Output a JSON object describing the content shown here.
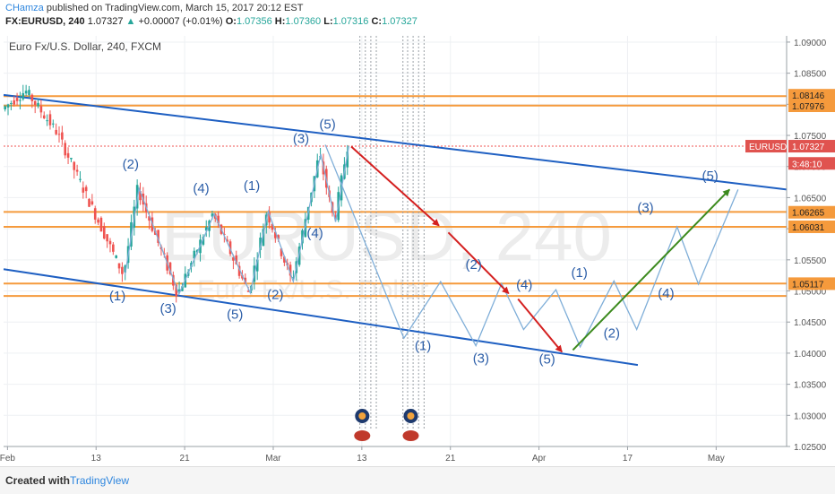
{
  "header": {
    "author": "CHamza",
    "published": " published on TradingView.com, March 15, 2017 20:12 EST",
    "symbol": "FX:EURUSD, 240",
    "last": "1.07327",
    "change": "+0.00007 (+0.01%)",
    "open_label": "O:",
    "open": "1.07356",
    "high_label": "H:",
    "high": "1.07360",
    "low_label": "L:",
    "low": "1.07316",
    "close_label": "C:",
    "close": "1.07327"
  },
  "footer": {
    "label": "Created with",
    "brand": "TradingView"
  },
  "colors": {
    "up_candle": "#26a69a",
    "down_candle": "#ef5350",
    "channel": "#1e5fc2",
    "horizontal_levels": "#f59a3c",
    "projection": "#7faed8",
    "red_arrow": "#d42020",
    "green_arrow": "#3c8a1e",
    "wave_label": "#2c5ea8",
    "price_badge": "#e0534f"
  },
  "chart_data": {
    "type": "candlestick",
    "title": "Euro Fx/U.S. Dollar, 240, FXCM",
    "watermark": "EURUSD, 240",
    "watermark_sub": "Euro Fx/U.S. Dollar",
    "x_ticks": [
      "Feb",
      "13",
      "21",
      "Mar",
      "13",
      "21",
      "Apr",
      "17",
      "May"
    ],
    "y_ticks": [
      "1.09000",
      "1.08500",
      "1.08000",
      "1.07500",
      "1.07000",
      "1.06500",
      "1.06000",
      "1.05500",
      "1.05000",
      "1.04500",
      "1.04000",
      "1.03500",
      "1.03000",
      "1.02500"
    ],
    "ylim": [
      1.025,
      1.091
    ],
    "price_axis_labels": [
      {
        "value": 1.08146,
        "text": "1.08146",
        "style": "level"
      },
      {
        "value": 1.07976,
        "text": "1.07976",
        "style": "level"
      },
      {
        "value": 1.07327,
        "text": "1.07327",
        "style": "current",
        "name": "EURUSD"
      },
      {
        "value": 1.0705,
        "text": "3:48:10",
        "style": "timer"
      },
      {
        "value": 1.06265,
        "text": "1.06265",
        "style": "level"
      },
      {
        "value": 1.06031,
        "text": "1.06031",
        "style": "level"
      },
      {
        "value": 1.05117,
        "text": "1.05117",
        "style": "level"
      }
    ],
    "horizontal_levels": [
      1.0813,
      1.0798,
      1.0627,
      1.0603,
      1.0512,
      1.0492
    ],
    "current_price": 1.07327,
    "channel_lines": [
      {
        "from": [
          0.0,
          1.0815
        ],
        "to": [
          1.0,
          1.0663
        ]
      },
      {
        "from": [
          0.0,
          1.0535
        ],
        "to": [
          0.81,
          1.0381
        ]
      }
    ],
    "projection_path": [
      [
        0.438,
        1.0735
      ],
      [
        0.545,
        1.0424
      ],
      [
        0.595,
        1.0515
      ],
      [
        0.643,
        1.0412
      ],
      [
        0.678,
        1.0512
      ],
      [
        0.708,
        1.0438
      ],
      [
        0.752,
        1.0502
      ],
      [
        0.785,
        1.041
      ],
      [
        0.831,
        1.0516
      ],
      [
        0.862,
        1.0438
      ],
      [
        0.917,
        1.0603
      ],
      [
        0.946,
        1.0511
      ],
      [
        1.0,
        1.0663
      ]
    ],
    "wave_labels": [
      {
        "text": "(1)",
        "x": 0.155,
        "y": 1.0485
      },
      {
        "text": "(2)",
        "x": 0.173,
        "y": 1.0697
      },
      {
        "text": "(3)",
        "x": 0.224,
        "y": 1.0465
      },
      {
        "text": "(4)",
        "x": 0.269,
        "y": 1.0658
      },
      {
        "text": "(5)",
        "x": 0.315,
        "y": 1.0455
      },
      {
        "text": "(1)",
        "x": 0.338,
        "y": 1.0662
      },
      {
        "text": "(2)",
        "x": 0.37,
        "y": 1.0487
      },
      {
        "text": "(3)",
        "x": 0.405,
        "y": 1.0738
      },
      {
        "text": "(4)",
        "x": 0.424,
        "y": 1.0586
      },
      {
        "text": "(5)",
        "x": 0.441,
        "y": 1.0761
      },
      {
        "text": "(1)",
        "x": 0.555,
        "y": 1.0405
      },
      {
        "text": "(2)",
        "x": 0.624,
        "y": 1.0535
      },
      {
        "text": "(3)",
        "x": 0.634,
        "y": 1.0385
      },
      {
        "text": "(4)",
        "x": 0.693,
        "y": 1.0503
      },
      {
        "text": "(5)",
        "x": 0.724,
        "y": 1.0383
      },
      {
        "text": "(1)",
        "x": 0.768,
        "y": 1.0522
      },
      {
        "text": "(2)",
        "x": 0.812,
        "y": 1.0425
      },
      {
        "text": "(3)",
        "x": 0.858,
        "y": 1.0627
      },
      {
        "text": "(4)",
        "x": 0.886,
        "y": 1.0489
      },
      {
        "text": "(5)",
        "x": 0.946,
        "y": 1.0678
      }
    ],
    "arrows": [
      {
        "color": "red",
        "from": [
          0.444,
          1.0732
        ],
        "to": [
          0.556,
          1.0605
        ]
      },
      {
        "color": "red",
        "from": [
          0.568,
          1.0594
        ],
        "to": [
          0.645,
          1.0496
        ]
      },
      {
        "color": "red",
        "from": [
          0.657,
          1.0487
        ],
        "to": [
          0.713,
          1.0402
        ]
      },
      {
        "color": "green",
        "from": [
          0.727,
          1.0405
        ],
        "to": [
          0.927,
          1.0663
        ]
      }
    ],
    "event_markers": {
      "x": [
        0.455,
        0.462,
        0.469,
        0.476,
        0.51,
        0.516,
        0.523,
        0.53,
        0.537
      ]
    },
    "candles_summary": {
      "start_price": 1.0792,
      "high": 1.0829,
      "low": 1.0493,
      "end_price": 1.07327
    }
  }
}
